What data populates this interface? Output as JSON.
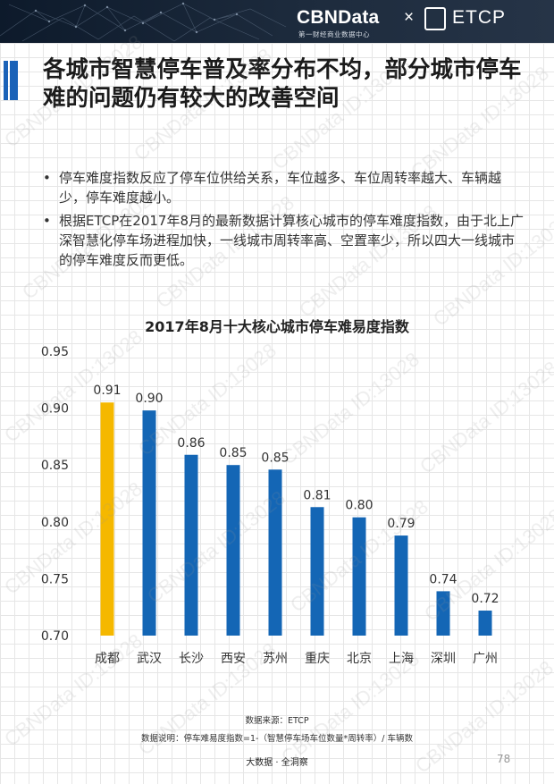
{
  "header": {
    "brand": "CBNData",
    "brand_x": "×",
    "brand2": "ETCP",
    "brand_sub": "第一财经商业数据中心"
  },
  "title": "各城市智慧停车普及率分布不均，部分城市停车难的问题仍有较大的改善空间",
  "bullets": [
    "停车难度指数反应了停车位供给关系，车位越多、车位周转率越大、车辆越少，停车难度越小。",
    "根据ETCP在2017年8月的最新数据计算核心城市的停车难度指数，由于北上广深智慧化停车场进程加快，一线城市周转率高、空置率少，所以四大一线城市的停车难度反而更低。"
  ],
  "chart_data": {
    "type": "bar",
    "title": "2017年8月十大核心城市停车难易度指数",
    "categories": [
      "成都",
      "武汉",
      "长沙",
      "西安",
      "苏州",
      "重庆",
      "北京",
      "上海",
      "深圳",
      "广州"
    ],
    "values": [
      0.905,
      0.898,
      0.859,
      0.85,
      0.846,
      0.813,
      0.804,
      0.788,
      0.739,
      0.722
    ],
    "data_labels": [
      "0.91",
      "0.90",
      "0.86",
      "0.85",
      "0.85",
      "0.81",
      "0.80",
      "0.79",
      "0.74",
      "0.72"
    ],
    "yticks": [
      "0.70",
      "0.75",
      "0.80",
      "0.85",
      "0.90",
      "0.95"
    ],
    "ylim": [
      0.7,
      0.95
    ],
    "highlight_index": 0,
    "colors": {
      "highlight": "#f5b800",
      "default": "#1466b5"
    },
    "grid": false
  },
  "notes": {
    "source": "数据来源：ETCP",
    "explanation": "数据说明：停车难易度指数=1-（智慧停车场车位数量*周转率）/ 车辆数"
  },
  "footer": {
    "text": "大数据 · 全洞察",
    "page": "78"
  },
  "watermark": "CBNData ID:13028"
}
